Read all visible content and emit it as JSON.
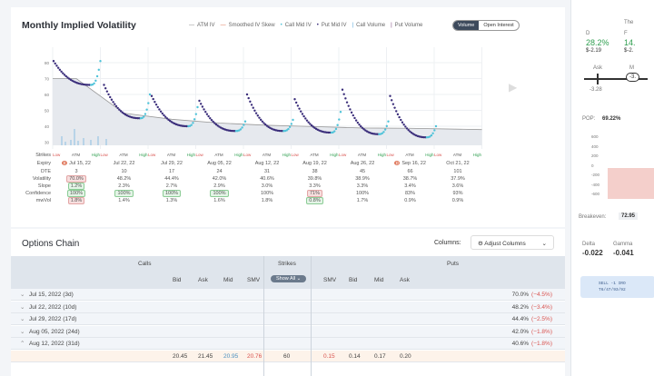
{
  "chart": {
    "title": "Monthly Implied Volatility",
    "legend": [
      {
        "label": "ATM IV",
        "color": "#888888",
        "mark": "line"
      },
      {
        "label": "Smoothed IV Skew",
        "color": "#e07050",
        "mark": "line"
      },
      {
        "label": "Call Mid IV",
        "color": "#4fc3d9",
        "mark": "dot"
      },
      {
        "label": "Put Mid IV",
        "color": "#3a2d7a",
        "mark": "dot"
      },
      {
        "label": "Call Volume",
        "color": "#4fa3d9",
        "mark": "bar"
      },
      {
        "label": "Put Volume",
        "color": "#7a3d7a",
        "mark": "bar"
      }
    ],
    "toggle": {
      "options": [
        "Volume",
        "Open Interest"
      ],
      "selected": "Volume"
    }
  },
  "chart_data": {
    "type": "scatter",
    "title": "Monthly Implied Volatility",
    "ylim": [
      28,
      84
    ],
    "yticks": [
      30,
      40,
      50,
      60,
      70,
      80
    ],
    "grid": true,
    "skews": [
      {
        "expiry": "Jul 15, 22",
        "left": 81,
        "min": 66,
        "right": 81
      },
      {
        "expiry": "Jul 22, 22",
        "left": 66,
        "min": 45,
        "right": 60
      },
      {
        "expiry": "Jul 29, 22",
        "left": 59,
        "min": 40,
        "right": 52
      },
      {
        "expiry": "Aug 05, 22",
        "left": 56,
        "min": 37,
        "right": 43
      },
      {
        "expiry": "Aug 12, 22",
        "left": 60,
        "min": 37,
        "right": 44
      },
      {
        "expiry": "Aug 19, 22",
        "left": 57,
        "min": 36,
        "right": 49
      },
      {
        "expiry": "Aug 26, 22",
        "left": 63,
        "min": 35,
        "right": 43
      },
      {
        "expiry": "Sep 16, 22",
        "left": 59,
        "min": 33,
        "right": 40
      }
    ],
    "atm_iv": [
      70,
      48.2,
      44.4,
      42,
      40.6,
      39.8,
      38.9,
      38.7,
      37.9
    ]
  },
  "table": {
    "row_labels": [
      "Strikes",
      "Expiry",
      "DTE",
      "Volatility",
      "Slope",
      "Confidence",
      "mwVol"
    ],
    "strike_labels": [
      "Low",
      "ATM",
      "High"
    ],
    "columns": [
      {
        "expiry": "Jul 15, 22",
        "icon": "E",
        "dte": "3",
        "vol": "70.0%",
        "slope": "1.2%",
        "conf": "100%",
        "mw": "1.8%",
        "b": [
          "r",
          "g",
          "g",
          "r"
        ]
      },
      {
        "expiry": "Jul 22, 22",
        "dte": "10",
        "vol": "48.2%",
        "slope": "2.3%",
        "conf": "100%",
        "mw": "1.4%",
        "b": [
          "",
          "",
          "g",
          ""
        ]
      },
      {
        "expiry": "Jul 29, 22",
        "dte": "17",
        "vol": "44.4%",
        "slope": "2.7%",
        "conf": "100%",
        "mw": "1.3%",
        "b": [
          "",
          "",
          "g",
          ""
        ]
      },
      {
        "expiry": "Aug 05, 22",
        "dte": "24",
        "vol": "42.0%",
        "slope": "2.9%",
        "conf": "100%",
        "mw": "1.6%",
        "b": [
          "",
          "",
          "g",
          ""
        ]
      },
      {
        "expiry": "Aug 12, 22",
        "dte": "31",
        "vol": "40.6%",
        "slope": "3.0%",
        "conf": "100%",
        "mw": "1.8%",
        "b": [
          "",
          "",
          "",
          ""
        ]
      },
      {
        "expiry": "Aug 19, 22",
        "dte": "38",
        "vol": "39.8%",
        "slope": "3.3%",
        "conf": "71%",
        "mw": "0.8%",
        "b": [
          "",
          "",
          "r",
          "g"
        ]
      },
      {
        "expiry": "Aug 26, 22",
        "dte": "45",
        "vol": "38.9%",
        "slope": "3.3%",
        "conf": "100%",
        "mw": "1.7%",
        "b": [
          "",
          "",
          "",
          ""
        ]
      },
      {
        "expiry": "Sep 16, 22",
        "icon": "D",
        "dte": "66",
        "vol": "38.7%",
        "slope": "3.4%",
        "conf": "83%",
        "mw": "0.9%",
        "b": [
          "",
          "",
          "",
          ""
        ]
      },
      {
        "expiry": "Oct 21, 22",
        "dte": "101",
        "vol": "37.9%",
        "slope": "3.6%",
        "conf": "93%",
        "mw": "0.9%",
        "b": [
          "",
          "",
          "",
          ""
        ]
      }
    ]
  },
  "chain": {
    "title": "Options Chain",
    "columns_label": "Columns:",
    "adjust_label": "Adjust Columns",
    "calls": "Calls",
    "strikes": "Strikes",
    "puts": "Puts",
    "show_all": "Show All",
    "call_cols": [
      "Bid",
      "Ask",
      "Mid",
      "SMV"
    ],
    "put_cols": [
      "SMV",
      "Bid",
      "Mid",
      "Ask"
    ],
    "rows": [
      {
        "label": "Jul 15, 2022 (3d)",
        "iv": "70.0%",
        "chg": "(−4.5%)",
        "open": false
      },
      {
        "label": "Jul 22, 2022 (10d)",
        "iv": "48.2%",
        "chg": "(−3.4%)",
        "open": false
      },
      {
        "label": "Jul 29, 2022 (17d)",
        "iv": "44.4%",
        "chg": "(−2.5%)",
        "open": false
      },
      {
        "label": "Aug 05, 2022 (24d)",
        "iv": "42.0%",
        "chg": "(−1.8%)",
        "open": false
      },
      {
        "label": "Aug 12, 2022 (31d)",
        "iv": "40.6%",
        "chg": "(−1.8%)",
        "open": true
      }
    ],
    "strike_row": {
      "call_bid": "20.45",
      "call_ask": "21.45",
      "call_mid": "20.95",
      "call_smv": "20.76",
      "strike": "60",
      "put_smv": "0.15",
      "put_bid": "0.14",
      "put_mid": "0.17",
      "put_ask": "0.20"
    }
  },
  "right": {
    "header": "The",
    "d_label": "D",
    "d_pct": "28.2%",
    "d_val": "$-2.19",
    "f_label": "F",
    "f_pct": "14.",
    "f_val": "$-2.",
    "ask_label": "Ask",
    "ask_val": "-3.28",
    "mid_label": "M",
    "mid_val": "-3.",
    "pop_label": "POP:",
    "pop": "69.22%",
    "yticks": [
      "600",
      "400",
      "200",
      "0",
      "-200",
      "-400",
      "-600"
    ],
    "breakeven_label": "Breakeven:",
    "breakeven": "72.95",
    "delta_label": "Delta",
    "delta": "-0.022",
    "gamma_label": "Gamma",
    "gamma": "-0.041",
    "order_line1": "SELL -1 IRO",
    "order_line2": "T6/47/93/92"
  }
}
